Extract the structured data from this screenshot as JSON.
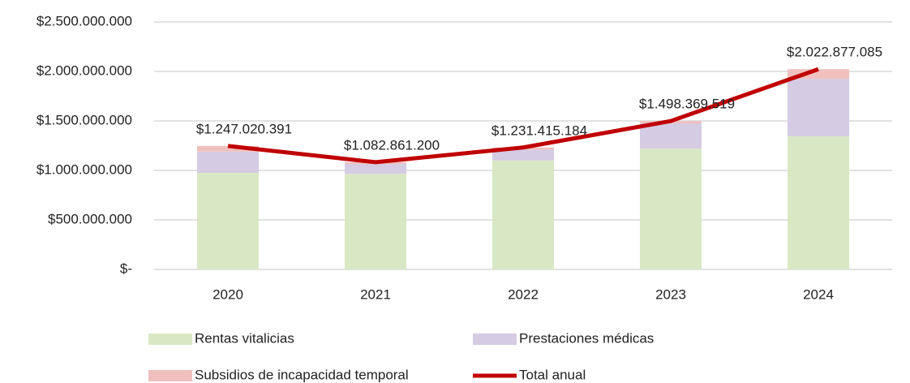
{
  "chart_data": {
    "type": "bar",
    "stacked": true,
    "categories": [
      "2020",
      "2021",
      "2022",
      "2023",
      "2024"
    ],
    "series": [
      {
        "name": "Rentas vitalicias",
        "color": "#d9e8c4",
        "values": [
          975000000,
          965000000,
          1100000000,
          1220000000,
          1345000000
        ]
      },
      {
        "name": "Prestaciones médicas",
        "color": "#d5cbe3",
        "values": [
          215000000,
          100000000,
          110000000,
          255000000,
          580000000
        ]
      },
      {
        "name": "Subsidios de incapacidad temporal",
        "color": "#f0c0bf",
        "values": [
          57000000,
          18000000,
          21000000,
          23000000,
          98000000
        ]
      },
      {
        "name": "Total anual",
        "type": "line",
        "color": "#c00000",
        "values": [
          1247020391,
          1082861200,
          1231415184,
          1498369519,
          2022877085
        ],
        "value_labels": [
          "$1.247.020.391",
          "$1.082.861.200",
          "$1.231.415.184",
          "$1.498.369.519",
          "$2.022.877.085"
        ]
      }
    ],
    "ylim": [
      0,
      2500000000
    ],
    "yticks": [
      {
        "value": 0,
        "label": "$-"
      },
      {
        "value": 500000000,
        "label": "$500.000.000"
      },
      {
        "value": 1000000000,
        "label": "$1.000.000.000"
      },
      {
        "value": 1500000000,
        "label": "$1.500.000.000"
      },
      {
        "value": 2000000000,
        "label": "$2.000.000.000"
      },
      {
        "value": 2500000000,
        "label": "$2.500.000.000"
      }
    ],
    "grid": true,
    "legend": "bottom"
  }
}
